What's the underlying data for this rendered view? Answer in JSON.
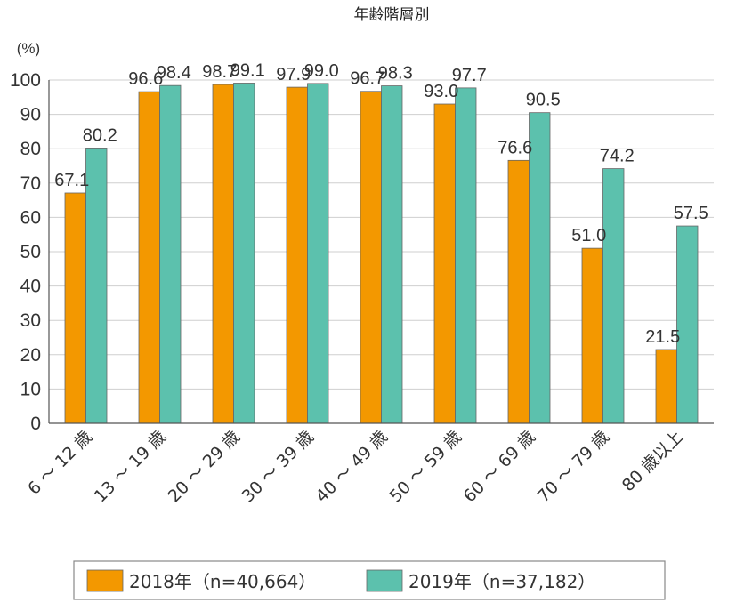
{
  "chart_data": {
    "type": "bar",
    "title": "年齢階層別",
    "ylabel": "(%)",
    "ylim": [
      0,
      100
    ],
    "yticks": [
      0,
      10,
      20,
      30,
      40,
      50,
      60,
      70,
      80,
      90,
      100
    ],
    "grid": true,
    "legend_position": "bottom",
    "categories": [
      "6 ～ 12 歳",
      "13 ～ 19 歳",
      "20 ～ 29 歳",
      "30 ～ 39 歳",
      "40 ～ 49 歳",
      "50 ～ 59 歳",
      "60 ～ 69 歳",
      "70 ～ 79 歳",
      "80 歳以上"
    ],
    "series": [
      {
        "name": "2018年（n=40,664）",
        "color": "#f39800",
        "values": [
          67.1,
          96.6,
          98.7,
          97.9,
          96.7,
          93.0,
          76.6,
          51.0,
          21.5
        ],
        "labels": [
          "67.1",
          "96.6",
          "98.7",
          "97.9",
          "96.7",
          "93.0",
          "76.6",
          "51.0",
          "21.5"
        ]
      },
      {
        "name": "2019年（n=37,182）",
        "color": "#5cc1ad",
        "values": [
          80.2,
          98.4,
          99.1,
          99.0,
          98.3,
          97.7,
          90.5,
          74.2,
          57.5
        ],
        "labels": [
          "80.2",
          "98.4",
          "99.1",
          "99.0",
          "98.3",
          "97.7",
          "90.5",
          "74.2",
          "57.5"
        ]
      }
    ]
  }
}
